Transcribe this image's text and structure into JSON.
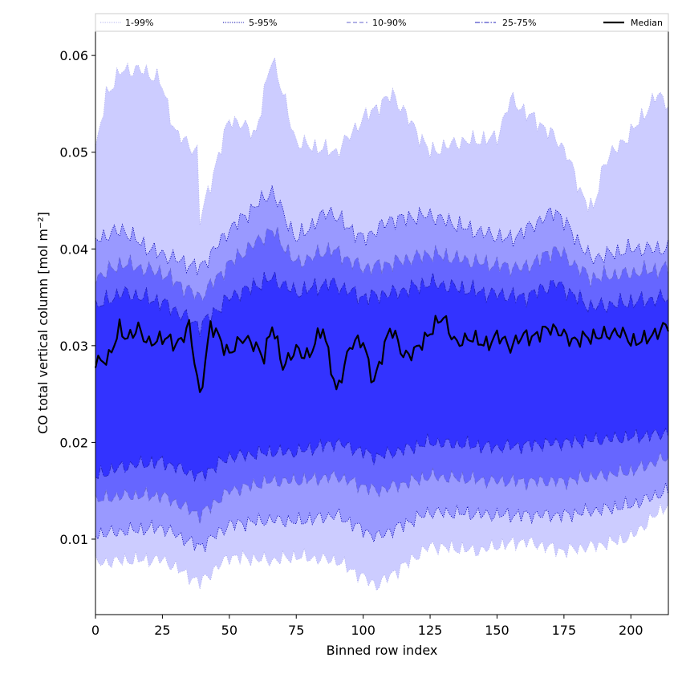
{
  "chart_data": {
    "type": "area",
    "title": "",
    "xlabel": "Binned row index",
    "ylabel": "CO total vertical column [mol m⁻²]",
    "xlim": [
      0,
      214
    ],
    "ylim": [
      0.0022,
      0.0625
    ],
    "x_ticks": [
      0,
      25,
      50,
      75,
      100,
      125,
      150,
      175,
      200
    ],
    "y_ticks": [
      0.01,
      0.02,
      0.03,
      0.04,
      0.05,
      0.06
    ],
    "x_tick_labels": [
      "0",
      "25",
      "50",
      "75",
      "100",
      "125",
      "150",
      "175",
      "200"
    ],
    "y_tick_labels": [
      "0.01",
      "0.02",
      "0.03",
      "0.04",
      "0.05",
      "0.06"
    ],
    "grid": false,
    "legend_position": "top",
    "n_points": 215,
    "x_step": 1,
    "series": [
      {
        "name": "1-99%",
        "kind": "band",
        "fill_color": "#ccccff",
        "line_color": "#b0b0ee",
        "line_style": "dotted",
        "lower_anchors": [
          [
            0,
            0.0075
          ],
          [
            10,
            0.0078
          ],
          [
            25,
            0.0079
          ],
          [
            39,
            0.0055
          ],
          [
            50,
            0.0082
          ],
          [
            66,
            0.0078
          ],
          [
            75,
            0.0082
          ],
          [
            90,
            0.0078
          ],
          [
            105,
            0.0052
          ],
          [
            125,
            0.0093
          ],
          [
            143,
            0.0088
          ],
          [
            150,
            0.0093
          ],
          [
            160,
            0.0098
          ],
          [
            175,
            0.0088
          ],
          [
            190,
            0.0095
          ],
          [
            200,
            0.0102
          ],
          [
            214,
            0.0137
          ]
        ],
        "upper_anchors": [
          [
            0,
            0.05
          ],
          [
            4,
            0.056
          ],
          [
            10,
            0.0585
          ],
          [
            17,
            0.0585
          ],
          [
            24,
            0.0575
          ],
          [
            30,
            0.052
          ],
          [
            38,
            0.05
          ],
          [
            39,
            0.043
          ],
          [
            50,
            0.0535
          ],
          [
            60,
            0.052
          ],
          [
            66,
            0.06
          ],
          [
            75,
            0.051
          ],
          [
            90,
            0.05
          ],
          [
            100,
            0.0535
          ],
          [
            111,
            0.056
          ],
          [
            125,
            0.05
          ],
          [
            135,
            0.051
          ],
          [
            150,
            0.0515
          ],
          [
            155,
            0.0555
          ],
          [
            170,
            0.052
          ],
          [
            176,
            0.05
          ],
          [
            181,
            0.046
          ],
          [
            186,
            0.044
          ],
          [
            190,
            0.049
          ],
          [
            200,
            0.052
          ],
          [
            210,
            0.056
          ],
          [
            214,
            0.055
          ]
        ]
      },
      {
        "name": "5-95%",
        "kind": "band",
        "fill_color": "#9999ff",
        "line_color": "#0000aa",
        "line_style": "dotted",
        "lower_anchors": [
          [
            0,
            0.0105
          ],
          [
            10,
            0.0108
          ],
          [
            25,
            0.0112
          ],
          [
            39,
            0.0092
          ],
          [
            50,
            0.0115
          ],
          [
            66,
            0.012
          ],
          [
            75,
            0.0118
          ],
          [
            90,
            0.0125
          ],
          [
            105,
            0.0102
          ],
          [
            125,
            0.0128
          ],
          [
            150,
            0.0125
          ],
          [
            175,
            0.0125
          ],
          [
            200,
            0.0135
          ],
          [
            214,
            0.015
          ]
        ],
        "upper_anchors": [
          [
            0,
            0.041
          ],
          [
            10,
            0.042
          ],
          [
            20,
            0.04
          ],
          [
            39,
            0.038
          ],
          [
            50,
            0.042
          ],
          [
            66,
            0.046
          ],
          [
            75,
            0.041
          ],
          [
            87,
            0.044
          ],
          [
            100,
            0.041
          ],
          [
            110,
            0.043
          ],
          [
            125,
            0.0435
          ],
          [
            140,
            0.042
          ],
          [
            155,
            0.041
          ],
          [
            172,
            0.044
          ],
          [
            185,
            0.039
          ],
          [
            200,
            0.04
          ],
          [
            214,
            0.04
          ]
        ]
      },
      {
        "name": "10-90%",
        "kind": "band",
        "fill_color": "#6666ff",
        "line_color": "#6666cc",
        "line_style": "dashed",
        "lower_anchors": [
          [
            0,
            0.014
          ],
          [
            10,
            0.0145
          ],
          [
            25,
            0.0145
          ],
          [
            39,
            0.0125
          ],
          [
            50,
            0.015
          ],
          [
            66,
            0.016
          ],
          [
            75,
            0.016
          ],
          [
            90,
            0.0165
          ],
          [
            105,
            0.015
          ],
          [
            125,
            0.0165
          ],
          [
            150,
            0.016
          ],
          [
            175,
            0.016
          ],
          [
            200,
            0.017
          ],
          [
            214,
            0.0185
          ]
        ],
        "upper_anchors": [
          [
            0,
            0.037
          ],
          [
            10,
            0.0385
          ],
          [
            25,
            0.0375
          ],
          [
            39,
            0.035
          ],
          [
            50,
            0.0385
          ],
          [
            66,
            0.042
          ],
          [
            75,
            0.0385
          ],
          [
            88,
            0.04
          ],
          [
            100,
            0.038
          ],
          [
            110,
            0.0385
          ],
          [
            125,
            0.0395
          ],
          [
            145,
            0.0385
          ],
          [
            160,
            0.038
          ],
          [
            172,
            0.04
          ],
          [
            185,
            0.037
          ],
          [
            200,
            0.0375
          ],
          [
            214,
            0.038
          ]
        ]
      },
      {
        "name": "25-75%",
        "kind": "band",
        "fill_color": "#3333ff",
        "line_color": "#2222bb",
        "line_style": "dashdot",
        "lower_anchors": [
          [
            0,
            0.0165
          ],
          [
            10,
            0.0175
          ],
          [
            25,
            0.018
          ],
          [
            39,
            0.0165
          ],
          [
            50,
            0.0185
          ],
          [
            66,
            0.019
          ],
          [
            75,
            0.019
          ],
          [
            90,
            0.02
          ],
          [
            105,
            0.0185
          ],
          [
            125,
            0.02
          ],
          [
            150,
            0.0195
          ],
          [
            175,
            0.02
          ],
          [
            200,
            0.0205
          ],
          [
            214,
            0.021
          ]
        ],
        "upper_anchors": [
          [
            0,
            0.034
          ],
          [
            10,
            0.0355
          ],
          [
            25,
            0.0345
          ],
          [
            39,
            0.032
          ],
          [
            50,
            0.035
          ],
          [
            66,
            0.037
          ],
          [
            75,
            0.0355
          ],
          [
            88,
            0.0365
          ],
          [
            100,
            0.035
          ],
          [
            112,
            0.0355
          ],
          [
            125,
            0.0365
          ],
          [
            145,
            0.0355
          ],
          [
            160,
            0.035
          ],
          [
            172,
            0.0365
          ],
          [
            185,
            0.034
          ],
          [
            200,
            0.0345
          ],
          [
            214,
            0.035
          ]
        ]
      },
      {
        "name": "Median",
        "kind": "line",
        "line_color": "#000000",
        "line_style": "solid",
        "anchors": [
          [
            0,
            0.0285
          ],
          [
            5,
            0.0285
          ],
          [
            9,
            0.032
          ],
          [
            12,
            0.0305
          ],
          [
            16,
            0.032
          ],
          [
            20,
            0.03
          ],
          [
            25,
            0.031
          ],
          [
            30,
            0.03
          ],
          [
            35,
            0.032
          ],
          [
            39,
            0.0248
          ],
          [
            43,
            0.032
          ],
          [
            46,
            0.031
          ],
          [
            50,
            0.029
          ],
          [
            55,
            0.031
          ],
          [
            59,
            0.03
          ],
          [
            63,
            0.029
          ],
          [
            66,
            0.032
          ],
          [
            70,
            0.028
          ],
          [
            75,
            0.0295
          ],
          [
            80,
            0.029
          ],
          [
            85,
            0.032
          ],
          [
            90,
            0.025
          ],
          [
            95,
            0.03
          ],
          [
            100,
            0.0305
          ],
          [
            104,
            0.026
          ],
          [
            110,
            0.032
          ],
          [
            115,
            0.029
          ],
          [
            120,
            0.0295
          ],
          [
            125,
            0.0315
          ],
          [
            130,
            0.033
          ],
          [
            135,
            0.03
          ],
          [
            140,
            0.031
          ],
          [
            145,
            0.03
          ],
          [
            150,
            0.031
          ],
          [
            155,
            0.03
          ],
          [
            160,
            0.031
          ],
          [
            165,
            0.031
          ],
          [
            170,
            0.032
          ],
          [
            175,
            0.031
          ],
          [
            180,
            0.0305
          ],
          [
            185,
            0.031
          ],
          [
            190,
            0.031
          ],
          [
            195,
            0.0315
          ],
          [
            200,
            0.0305
          ],
          [
            205,
            0.0305
          ],
          [
            210,
            0.0315
          ],
          [
            214,
            0.032
          ]
        ]
      }
    ]
  }
}
